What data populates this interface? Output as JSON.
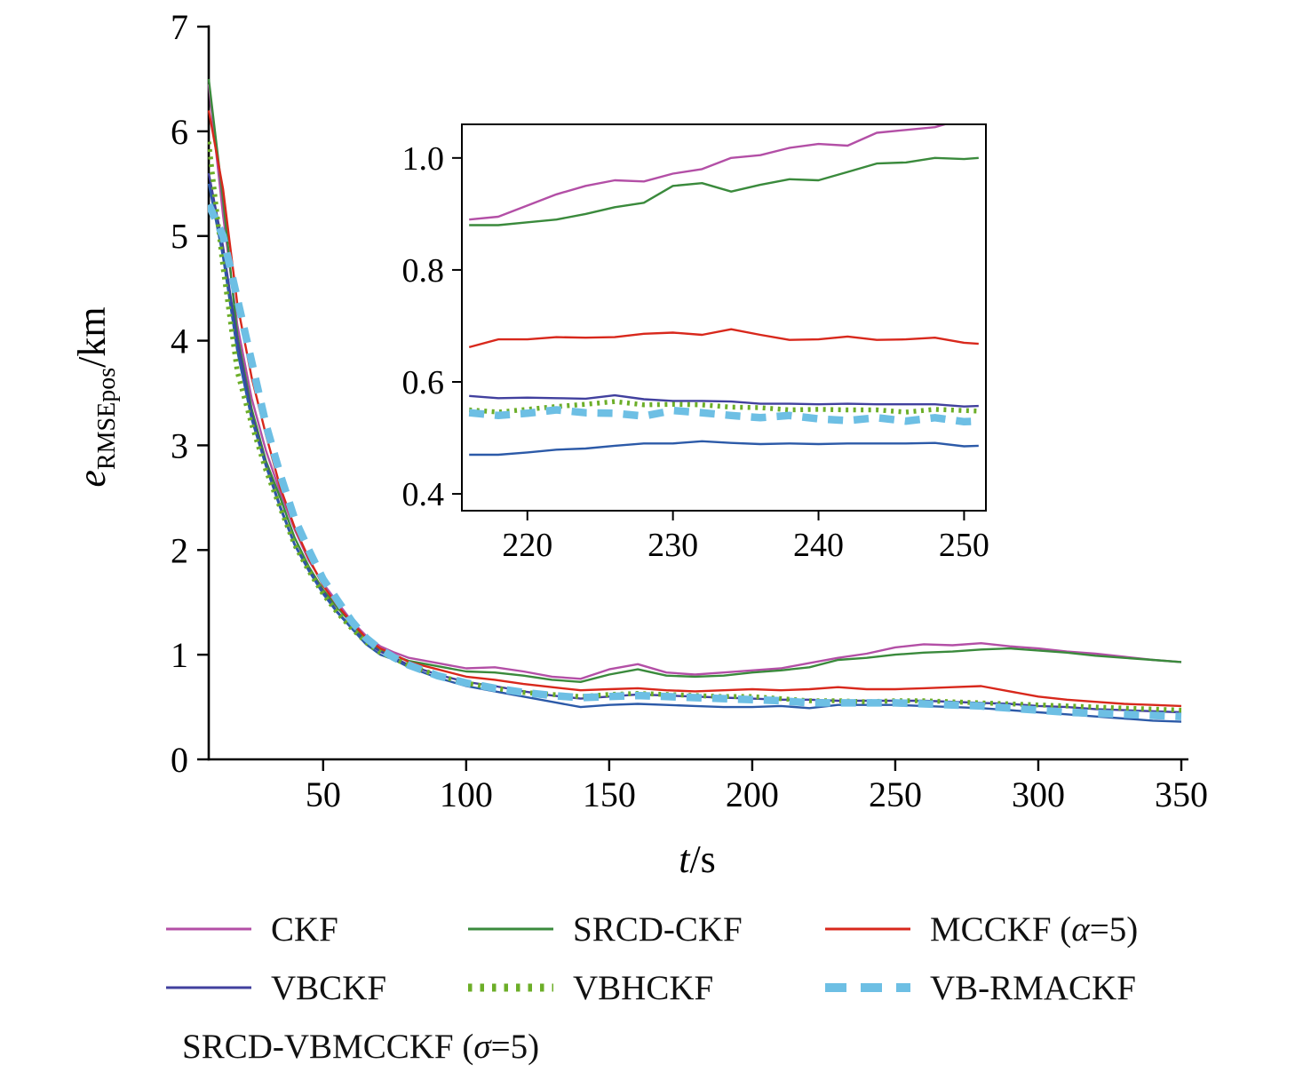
{
  "figure": {
    "background": "#ffffff",
    "axis_color": "#000000"
  },
  "axes": {
    "xlabel_parts": [
      {
        "t": "t",
        "i": true
      },
      {
        "t": "/s"
      }
    ],
    "ylabel_parts": [
      {
        "t": "e",
        "i": true
      },
      {
        "t": "RMSEpos",
        "sub": true
      },
      {
        "t": "/km"
      }
    ]
  },
  "chart_data": {
    "type": "line",
    "title": "",
    "xlabel": "t/s",
    "ylabel": "e_RMSEpos/km",
    "grid": false,
    "legend_position": "below",
    "main": {
      "xlim": [
        10,
        350
      ],
      "ylim": [
        0,
        7
      ],
      "xticks": [
        {
          "v": 50,
          "label": "50"
        },
        {
          "v": 100,
          "label": "100"
        },
        {
          "v": 150,
          "label": "150"
        },
        {
          "v": 200,
          "label": "200"
        },
        {
          "v": 250,
          "label": "250"
        },
        {
          "v": 300,
          "label": "300"
        },
        {
          "v": 350,
          "label": "350"
        }
      ],
      "yticks": [
        {
          "v": 0,
          "label": "0"
        },
        {
          "v": 1,
          "label": "1"
        },
        {
          "v": 2,
          "label": "2"
        },
        {
          "v": 3,
          "label": "3"
        },
        {
          "v": 4,
          "label": "4"
        },
        {
          "v": 5,
          "label": "5"
        },
        {
          "v": 6,
          "label": "6"
        },
        {
          "v": 7,
          "label": "7"
        }
      ],
      "x": [
        10,
        15,
        20,
        25,
        30,
        35,
        40,
        45,
        50,
        55,
        60,
        65,
        70,
        75,
        80,
        90,
        100,
        110,
        120,
        130,
        140,
        150,
        160,
        170,
        180,
        190,
        200,
        210,
        220,
        230,
        240,
        250,
        260,
        270,
        280,
        290,
        300,
        310,
        320,
        330,
        340,
        350
      ]
    },
    "inset": {
      "xlim": [
        215.5,
        251.5
      ],
      "ylim": [
        0.37,
        1.06
      ],
      "xticks": [
        {
          "v": 220,
          "label": "220"
        },
        {
          "v": 230,
          "label": "230"
        },
        {
          "v": 240,
          "label": "240"
        },
        {
          "v": 250,
          "label": "250"
        }
      ],
      "yticks": [
        {
          "v": 0.4,
          "label": "0.4"
        },
        {
          "v": 0.6,
          "label": "0.6"
        },
        {
          "v": 0.8,
          "label": "0.8"
        },
        {
          "v": 1.0,
          "label": "1.0"
        }
      ],
      "x": [
        216,
        218,
        220,
        222,
        224,
        226,
        228,
        230,
        232,
        234,
        236,
        238,
        240,
        242,
        244,
        246,
        248,
        250,
        251
      ]
    },
    "series": [
      {
        "name": "CKF",
        "label_parts": [
          {
            "t": "CKF"
          }
        ],
        "color": "#b34fa6",
        "style": "solid",
        "main_values": [
          6.45,
          5.2,
          4.15,
          3.45,
          2.95,
          2.55,
          2.2,
          1.9,
          1.68,
          1.5,
          1.32,
          1.18,
          1.08,
          1.02,
          0.97,
          0.92,
          0.87,
          0.88,
          0.84,
          0.79,
          0.77,
          0.86,
          0.91,
          0.83,
          0.81,
          0.83,
          0.85,
          0.87,
          0.92,
          0.97,
          1.01,
          1.07,
          1.1,
          1.09,
          1.11,
          1.08,
          1.06,
          1.03,
          1.01,
          0.98,
          0.95,
          0.93
        ],
        "inset_values": [
          0.89,
          0.895,
          0.915,
          0.935,
          0.95,
          0.96,
          0.958,
          0.972,
          0.98,
          1.0,
          1.005,
          1.018,
          1.025,
          1.022,
          1.045,
          1.05,
          1.055,
          1.07,
          1.075
        ]
      },
      {
        "name": "SRCD-CKF",
        "label_parts": [
          {
            "t": "SRCD-CKF"
          }
        ],
        "color": "#3a8a3c",
        "style": "solid",
        "main_values": [
          6.5,
          5.35,
          4.05,
          3.35,
          2.85,
          2.5,
          2.12,
          1.84,
          1.62,
          1.45,
          1.3,
          1.14,
          1.04,
          0.99,
          0.94,
          0.89,
          0.84,
          0.83,
          0.8,
          0.76,
          0.74,
          0.81,
          0.86,
          0.8,
          0.79,
          0.8,
          0.83,
          0.85,
          0.88,
          0.95,
          0.97,
          1.0,
          1.02,
          1.03,
          1.05,
          1.06,
          1.04,
          1.02,
          0.99,
          0.97,
          0.95,
          0.93
        ],
        "inset_values": [
          0.88,
          0.88,
          0.885,
          0.89,
          0.9,
          0.912,
          0.92,
          0.95,
          0.955,
          0.94,
          0.952,
          0.962,
          0.96,
          0.975,
          0.99,
          0.992,
          1.0,
          0.998,
          1.0
        ]
      },
      {
        "name": "MCCKF (α=5)",
        "label_parts": [
          {
            "t": "MCCKF ("
          },
          {
            "t": "α",
            "i": true
          },
          {
            "t": "=5)"
          }
        ],
        "color": "#d8281c",
        "style": "solid",
        "main_values": [
          6.2,
          5.45,
          4.35,
          3.65,
          3.1,
          2.6,
          2.22,
          1.92,
          1.66,
          1.47,
          1.31,
          1.16,
          1.06,
          1.0,
          0.93,
          0.86,
          0.79,
          0.76,
          0.72,
          0.69,
          0.66,
          0.67,
          0.68,
          0.66,
          0.65,
          0.66,
          0.67,
          0.66,
          0.67,
          0.69,
          0.67,
          0.67,
          0.68,
          0.69,
          0.7,
          0.65,
          0.6,
          0.57,
          0.55,
          0.53,
          0.52,
          0.51
        ],
        "inset_values": [
          0.662,
          0.676,
          0.676,
          0.68,
          0.679,
          0.68,
          0.686,
          0.688,
          0.684,
          0.694,
          0.684,
          0.675,
          0.676,
          0.681,
          0.675,
          0.676,
          0.679,
          0.67,
          0.668
        ]
      },
      {
        "name": "VBCKF",
        "label_parts": [
          {
            "t": "VBCKF"
          }
        ],
        "color": "#41409e",
        "style": "solid",
        "main_values": [
          5.6,
          4.9,
          4.0,
          3.3,
          2.82,
          2.42,
          2.06,
          1.81,
          1.6,
          1.41,
          1.26,
          1.12,
          1.03,
          0.97,
          0.9,
          0.81,
          0.74,
          0.7,
          0.65,
          0.61,
          0.58,
          0.6,
          0.62,
          0.61,
          0.6,
          0.59,
          0.58,
          0.57,
          0.57,
          0.56,
          0.56,
          0.56,
          0.56,
          0.55,
          0.54,
          0.53,
          0.51,
          0.5,
          0.48,
          0.47,
          0.46,
          0.45
        ],
        "inset_values": [
          0.575,
          0.571,
          0.572,
          0.571,
          0.57,
          0.576,
          0.569,
          0.566,
          0.566,
          0.565,
          0.561,
          0.561,
          0.56,
          0.561,
          0.56,
          0.56,
          0.56,
          0.556,
          0.557
        ]
      },
      {
        "name": "VBHCKF",
        "label_parts": [
          {
            "t": "VBHCKF"
          }
        ],
        "color": "#6cae28",
        "style": "dotted",
        "main_values": [
          5.9,
          4.7,
          3.7,
          3.2,
          2.76,
          2.4,
          2.05,
          1.8,
          1.58,
          1.4,
          1.25,
          1.12,
          1.02,
          0.96,
          0.9,
          0.8,
          0.73,
          0.68,
          0.64,
          0.62,
          0.6,
          0.62,
          0.63,
          0.62,
          0.61,
          0.6,
          0.6,
          0.58,
          0.56,
          0.56,
          0.55,
          0.56,
          0.56,
          0.55,
          0.54,
          0.53,
          0.52,
          0.51,
          0.5,
          0.49,
          0.48,
          0.47
        ],
        "inset_values": [
          0.55,
          0.546,
          0.551,
          0.556,
          0.56,
          0.565,
          0.559,
          0.56,
          0.559,
          0.555,
          0.554,
          0.55,
          0.551,
          0.55,
          0.55,
          0.546,
          0.551,
          0.549,
          0.548
        ]
      },
      {
        "name": "VB-RMACKF",
        "label_parts": [
          {
            "t": "VB-RMACKF"
          }
        ],
        "color": "#6dbfe4",
        "style": "dashed",
        "main_values": [
          5.3,
          5.0,
          4.4,
          3.8,
          3.2,
          2.72,
          2.3,
          2.0,
          1.72,
          1.52,
          1.32,
          1.16,
          1.05,
          0.97,
          0.9,
          0.8,
          0.73,
          0.68,
          0.64,
          0.61,
          0.59,
          0.6,
          0.61,
          0.6,
          0.59,
          0.58,
          0.57,
          0.56,
          0.54,
          0.54,
          0.54,
          0.54,
          0.53,
          0.52,
          0.51,
          0.49,
          0.47,
          0.45,
          0.44,
          0.43,
          0.42,
          0.41
        ],
        "inset_values": [
          0.545,
          0.54,
          0.544,
          0.55,
          0.545,
          0.544,
          0.539,
          0.549,
          0.545,
          0.54,
          0.536,
          0.54,
          0.534,
          0.531,
          0.536,
          0.53,
          0.536,
          0.529,
          0.53
        ]
      },
      {
        "name": "SRCD-VBMCCKF (σ=5)",
        "label_parts": [
          {
            "t": "SRCD-VBMCCKF ("
          },
          {
            "t": "σ",
            "i": true
          },
          {
            "t": "=5)"
          }
        ],
        "color": "#2c5aa8",
        "style": "solid",
        "main_values": [
          5.5,
          4.8,
          3.9,
          3.25,
          2.8,
          2.4,
          2.05,
          1.8,
          1.58,
          1.4,
          1.25,
          1.1,
          1.0,
          0.95,
          0.88,
          0.78,
          0.7,
          0.65,
          0.6,
          0.55,
          0.5,
          0.52,
          0.53,
          0.52,
          0.51,
          0.5,
          0.5,
          0.51,
          0.49,
          0.52,
          0.52,
          0.52,
          0.51,
          0.5,
          0.49,
          0.47,
          0.45,
          0.43,
          0.41,
          0.39,
          0.37,
          0.36
        ],
        "inset_values": [
          0.47,
          0.47,
          0.474,
          0.479,
          0.481,
          0.486,
          0.49,
          0.49,
          0.494,
          0.491,
          0.489,
          0.49,
          0.489,
          0.49,
          0.49,
          0.49,
          0.491,
          0.485,
          0.486
        ]
      }
    ]
  }
}
